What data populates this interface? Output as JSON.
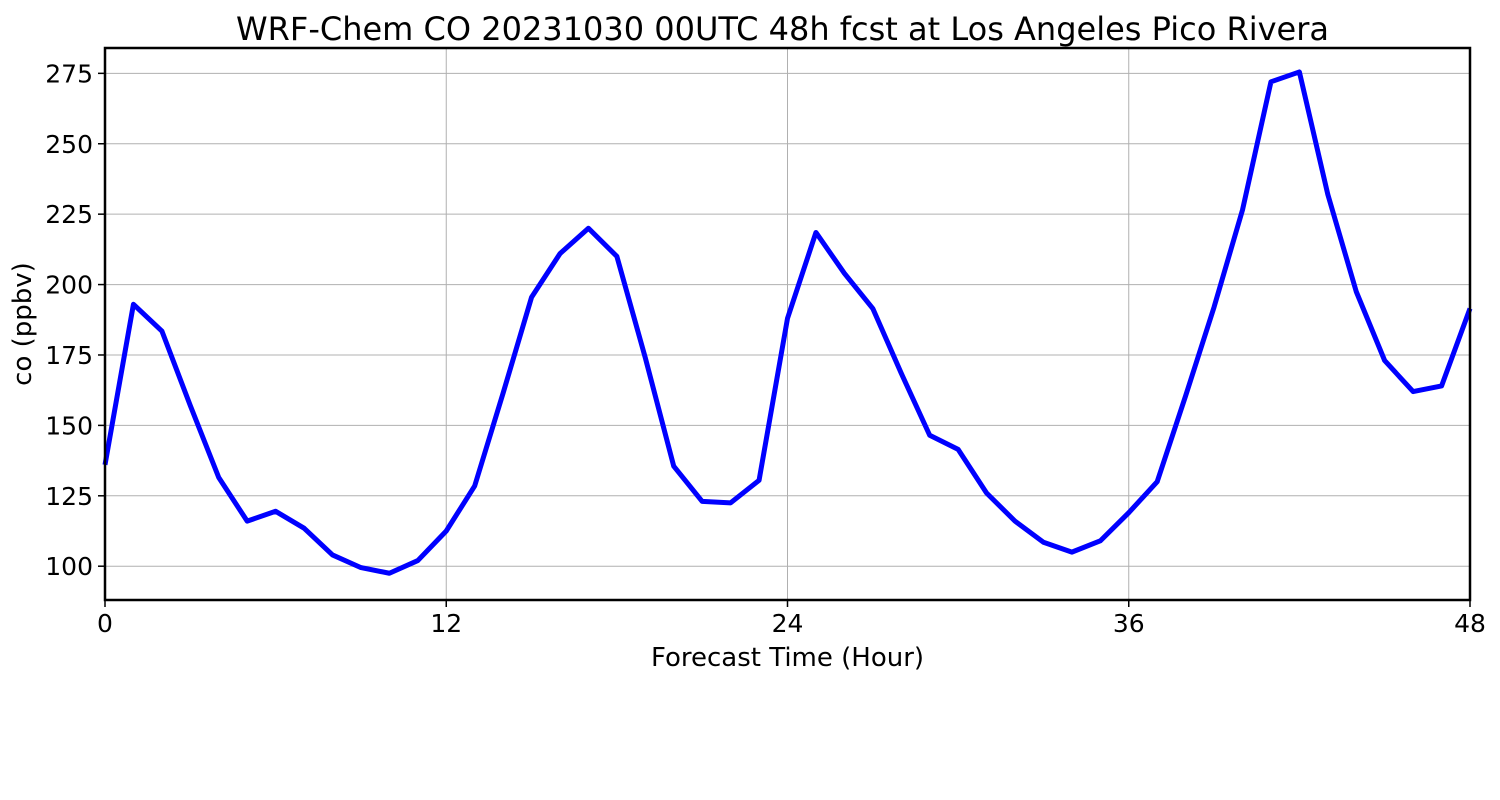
{
  "chart_data": {
    "type": "line",
    "title": "WRF-Chem CO  20231030 00UTC 48h fcst at Los Angeles Pico Rivera",
    "xlabel": "Forecast Time (Hour)",
    "ylabel": "co  (ppbv)",
    "xlim": [
      0,
      48
    ],
    "ylim": [
      88,
      284
    ],
    "xticks": [
      0,
      12,
      24,
      36,
      48
    ],
    "yticks": [
      100,
      125,
      150,
      175,
      200,
      225,
      250,
      275
    ],
    "grid": true,
    "legend": "none",
    "series": [
      {
        "color": "#0000ff",
        "x": [
          0,
          1,
          2,
          3,
          4,
          5,
          6,
          7,
          8,
          9,
          10,
          11,
          12,
          13,
          14,
          15,
          16,
          17,
          18,
          19,
          20,
          21,
          22,
          23,
          24,
          25,
          26,
          27,
          28,
          29,
          30,
          31,
          32,
          33,
          34,
          35,
          36,
          37,
          38,
          39,
          40,
          41,
          42,
          43,
          44,
          45,
          46,
          47,
          48
        ],
        "y": [
          136,
          193,
          183.5,
          157,
          131.5,
          116,
          119.5,
          113.5,
          104,
          99.5,
          97.5,
          102,
          112.5,
          128.5,
          161.5,
          195.5,
          211,
          220,
          210,
          174,
          135.5,
          123,
          122.5,
          130.5,
          188,
          218.5,
          204,
          191.5,
          168.5,
          146.5,
          141.5,
          126,
          116,
          108.5,
          105,
          109,
          119,
          130,
          160.5,
          192,
          226.5,
          272,
          275.5,
          232,
          197.5,
          173,
          162,
          164,
          191.5
        ]
      }
    ]
  }
}
